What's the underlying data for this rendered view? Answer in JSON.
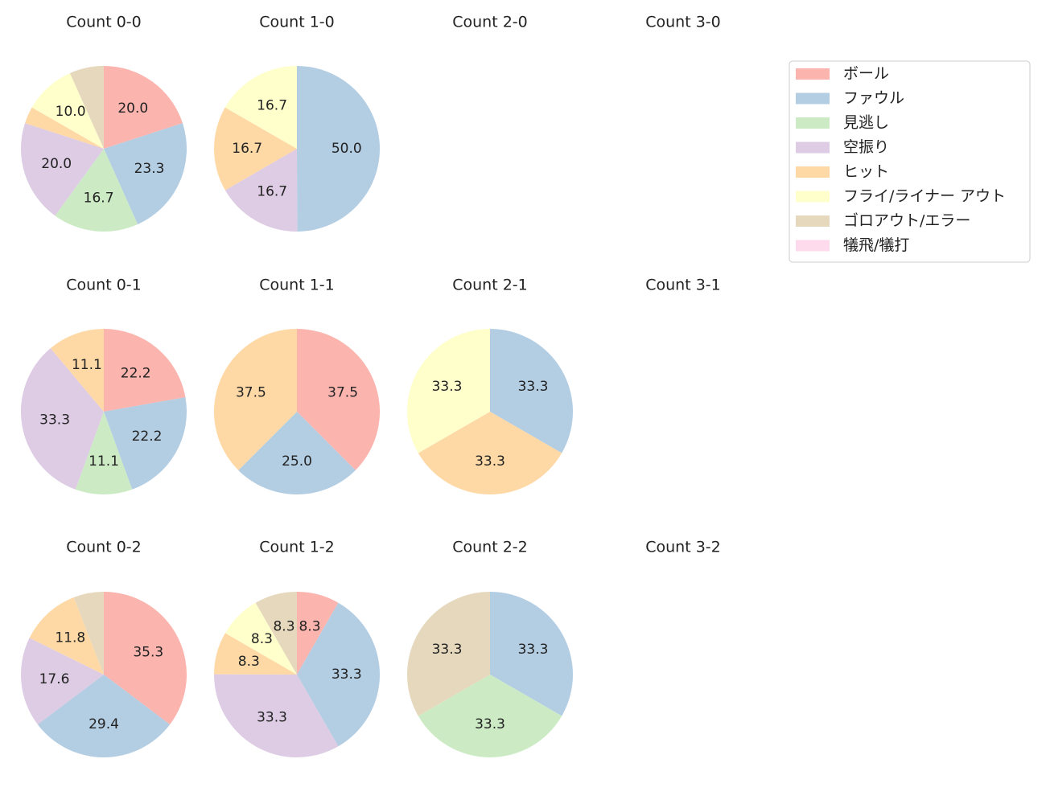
{
  "categories": [
    "ボール",
    "ファウル",
    "見逃し",
    "空振り",
    "ヒット",
    "フライ/ライナー アウト",
    "ゴロアウト/エラー",
    "犠飛/犠打"
  ],
  "colors": [
    "#fbb4ae",
    "#b3cde3",
    "#ccebc5",
    "#decbe4",
    "#fed9a6",
    "#ffffcc",
    "#e5d8bd",
    "#fddaec"
  ],
  "chart_data": [
    {
      "type": "pie",
      "title": "Count 0-0",
      "values": [
        20.0,
        23.3,
        16.7,
        20.0,
        3.3,
        10.0,
        6.7,
        0
      ],
      "labels": [
        "20.0",
        "23.3",
        "16.7",
        "20.0",
        "",
        "10.0",
        "",
        ""
      ]
    },
    {
      "type": "pie",
      "title": "Count 1-0",
      "values": [
        0,
        50.0,
        0,
        16.7,
        16.7,
        16.7,
        0,
        0
      ],
      "labels": [
        "",
        "50.0",
        "",
        "16.7",
        "16.7",
        "16.7",
        "",
        ""
      ]
    },
    {
      "type": "pie",
      "title": "Count 2-0",
      "values": [],
      "labels": []
    },
    {
      "type": "pie",
      "title": "Count 3-0",
      "values": [],
      "labels": []
    },
    {
      "type": "pie",
      "title": "Count 0-1",
      "values": [
        22.2,
        22.2,
        11.1,
        33.3,
        11.1,
        0,
        0,
        0
      ],
      "labels": [
        "22.2",
        "22.2",
        "11.1",
        "33.3",
        "11.1",
        "",
        "",
        ""
      ]
    },
    {
      "type": "pie",
      "title": "Count 1-1",
      "values": [
        37.5,
        25.0,
        0,
        0,
        37.5,
        0,
        0,
        0
      ],
      "labels": [
        "37.5",
        "25.0",
        "",
        "",
        "37.5",
        "",
        "",
        ""
      ]
    },
    {
      "type": "pie",
      "title": "Count 2-1",
      "values": [
        0,
        33.3,
        0,
        0,
        33.3,
        33.3,
        0,
        0
      ],
      "labels": [
        "",
        "33.3",
        "",
        "",
        "33.3",
        "33.3",
        "",
        ""
      ]
    },
    {
      "type": "pie",
      "title": "Count 3-1",
      "values": [],
      "labels": []
    },
    {
      "type": "pie",
      "title": "Count 0-2",
      "values": [
        35.3,
        29.4,
        0,
        17.6,
        11.8,
        0,
        5.9,
        0
      ],
      "labels": [
        "35.3",
        "29.4",
        "",
        "17.6",
        "11.8",
        "",
        "",
        ""
      ]
    },
    {
      "type": "pie",
      "title": "Count 1-2",
      "values": [
        8.3,
        33.3,
        0,
        33.3,
        8.3,
        8.3,
        8.3,
        0
      ],
      "labels": [
        "8.3",
        "33.3",
        "",
        "33.3",
        "8.3",
        "8.3",
        "8.3",
        ""
      ]
    },
    {
      "type": "pie",
      "title": "Count 2-2",
      "values": [
        0,
        33.3,
        33.3,
        0,
        0,
        0,
        33.3,
        0
      ],
      "labels": [
        "",
        "33.3",
        "33.3",
        "",
        "",
        "",
        "33.3",
        ""
      ]
    },
    {
      "type": "pie",
      "title": "Count 3-2",
      "values": [],
      "labels": []
    }
  ]
}
